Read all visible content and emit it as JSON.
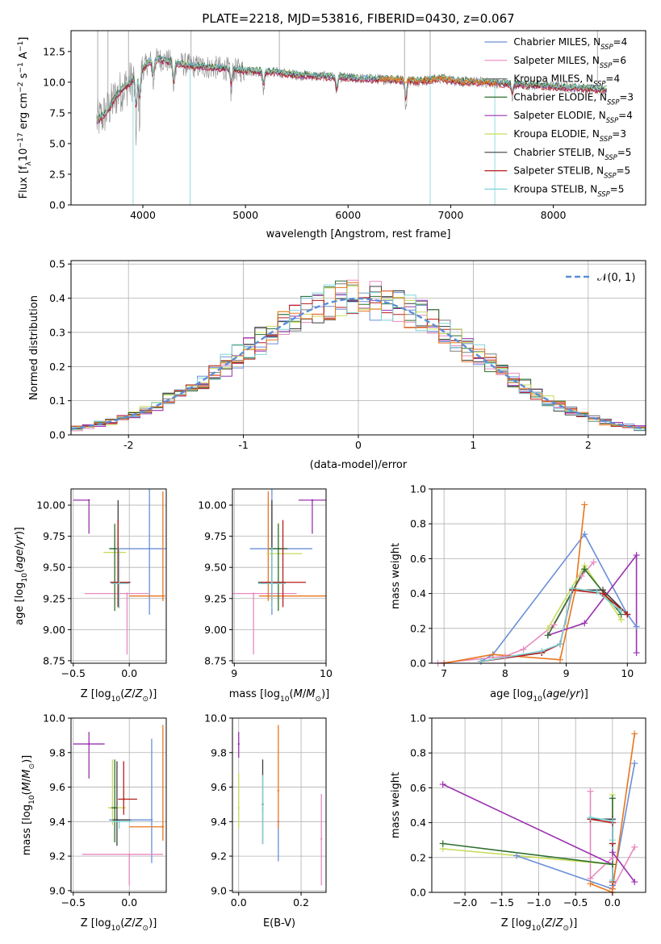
{
  "colors": {
    "chabrier_miles": "#6a8fd8",
    "salpeter_miles": "#e889c0",
    "kroupa_miles": "#7f7f7f",
    "chabrier_elodie": "#2f6f2f",
    "salpeter_elodie": "#9b32b0",
    "kroupa_elodie": "#c7dc5a",
    "chabrier_stelib": "#3d3d3d",
    "salpeter_stelib": "#b71c1c",
    "kroupa_stelib": "#7fd3d8",
    "orange": "#e8761e",
    "normal": "#5b8fd6",
    "grid": "#b0b0b0"
  },
  "chart_data": [
    {
      "type": "line",
      "title": "PLATE=2218, MJD=53816, FIBERID=0430, z=0.067",
      "xlabel": "wavelength [Angstrom, rest frame]",
      "ylabel": "Flux [f_λ10^-17 erg cm^-2 s^-1 A^-1]",
      "xlim": [
        3300,
        8900
      ],
      "ylim": [
        0,
        14.2
      ],
      "xticks": [
        4000,
        5000,
        6000,
        7000,
        8000
      ],
      "yticks": [
        0.0,
        2.5,
        5.0,
        7.5,
        10.0,
        12.5
      ],
      "legend_position": "right",
      "series": [
        {
          "name": "Chabrier MILES, N_SSP=4",
          "color": "#6a8fd8"
        },
        {
          "name": "Salpeter MILES, N_SSP=6",
          "color": "#e889c0"
        },
        {
          "name": "Kroupa MILES, N_SSP=4",
          "color": "#7f7f7f"
        },
        {
          "name": "Chabrier ELODIE, N_SSP=3",
          "color": "#2f6f2f"
        },
        {
          "name": "Salpeter ELODIE, N_SSP=4",
          "color": "#9b32b0"
        },
        {
          "name": "Kroupa ELODIE, N_SSP=3",
          "color": "#c7dc5a"
        },
        {
          "name": "Chabrier STELIB, N_SSP=5",
          "color": "#3d3d3d"
        },
        {
          "name": "Salpeter STELIB, N_SSP=5",
          "color": "#b71c1c"
        },
        {
          "name": "Kroupa STELIB, N_SSP=5",
          "color": "#7fd3d8"
        }
      ],
      "continuum": {
        "x": [
          3550,
          3650,
          3750,
          3850,
          3950,
          4050,
          4150,
          4300,
          4500,
          4700,
          4900,
          5100,
          5300,
          5500,
          5700,
          5900,
          6100,
          6300,
          6500,
          6700,
          6900,
          7100,
          7300,
          7500,
          7700,
          7900,
          8100,
          8300,
          8500
        ],
        "y": [
          6.8,
          7.6,
          9.0,
          9.8,
          10.6,
          11.6,
          11.9,
          11.6,
          11.3,
          11.2,
          11.0,
          10.9,
          10.8,
          10.6,
          10.5,
          10.4,
          10.3,
          10.25,
          10.2,
          10.1,
          10.3,
          10.05,
          10.0,
          9.9,
          9.8,
          9.7,
          9.6,
          9.5,
          9.4
        ]
      }
    },
    {
      "type": "line",
      "xlabel": "(data-model)/error",
      "ylabel": "Normed distribution",
      "xlim": [
        -2.5,
        2.5
      ],
      "ylim": [
        0,
        0.51
      ],
      "xticks": [
        -2,
        -1,
        0,
        1,
        2
      ],
      "yticks": [
        0.0,
        0.1,
        0.2,
        0.3,
        0.4,
        0.5
      ],
      "legend": "𝒩(0, 1)",
      "legend_position": "top-right",
      "bin_width": 0.1
    },
    {
      "type": "scatter",
      "xlabel": "Z [log10(Z/Z⊙)]",
      "ylabel": "age  [log10(age/yr)]",
      "xlim": [
        -0.52,
        0.33
      ],
      "ylim": [
        8.73,
        10.13
      ],
      "xticks": [
        -0.5,
        0.0
      ],
      "yticks": [
        8.75,
        9.0,
        9.25,
        9.5,
        9.75,
        10.0
      ],
      "points": [
        {
          "color": "#9b32b0",
          "x": -0.36,
          "xerr": [
            0.14,
            0
          ],
          "y": 10.04,
          "yerr": [
            0.27,
            0
          ]
        },
        {
          "color": "#6a8fd8",
          "x": 0.18,
          "xerr": [
            0.35,
            0.2
          ],
          "y": 9.65,
          "yerr": [
            0.53,
            0.48
          ]
        },
        {
          "color": "#e889c0",
          "x": -0.02,
          "xerr": [
            0.38,
            0.2
          ],
          "y": 9.29,
          "yerr": [
            0.49,
            0.0
          ]
        },
        {
          "color": "#e8761e",
          "x": 0.3,
          "xerr": [
            0.3,
            0.02
          ],
          "y": 9.27,
          "yerr": [
            0.04,
            0.84
          ]
        },
        {
          "color": "#c7dc5a",
          "x": -0.13,
          "xerr": [
            0.1,
            0.1
          ],
          "y": 9.62,
          "yerr": [
            0.4,
            0.15
          ]
        },
        {
          "color": "#2f6f2f",
          "x": -0.13,
          "xerr": [
            0.05,
            0.02
          ],
          "y": 9.65,
          "yerr": [
            0.5,
            0.2
          ]
        },
        {
          "color": "#3d3d3d",
          "x": -0.1,
          "xerr": [
            0.07,
            0.11
          ],
          "y": 9.38,
          "yerr": [
            0.2,
            0.66
          ]
        },
        {
          "color": "#b71c1c",
          "x": -0.1,
          "xerr": [
            0.07,
            0.11
          ],
          "y": 9.38,
          "yerr": [
            0.2,
            0.5
          ]
        },
        {
          "color": "#7fd3d8",
          "x": -0.09,
          "xerr": [
            0.07,
            0.09
          ],
          "y": 9.37,
          "yerr": [
            0.2,
            0.29
          ]
        }
      ]
    },
    {
      "type": "scatter",
      "xlabel": "mass [log10(M/M⊙)]",
      "xlim": [
        8.98,
        10.0
      ],
      "ylim": [
        8.73,
        10.13
      ],
      "xticks": [
        9,
        10
      ],
      "yticks": [
        8.75,
        9.0,
        9.25,
        9.5,
        9.75,
        10.0
      ],
      "points": [
        {
          "color": "#9b32b0",
          "x": 9.85,
          "xerr": [
            0.15,
            0.15
          ],
          "y": 10.04,
          "yerr": [
            0.27,
            0
          ]
        },
        {
          "color": "#6a8fd8",
          "x": 9.41,
          "xerr": [
            0.24,
            0.44
          ],
          "y": 9.65,
          "yerr": [
            0.53,
            0.48
          ]
        },
        {
          "color": "#e889c0",
          "x": 9.21,
          "xerr": [
            0.23,
            0.47
          ],
          "y": 9.29,
          "yerr": [
            0.49,
            0.0
          ]
        },
        {
          "color": "#e8761e",
          "x": 9.37,
          "xerr": [
            0.1,
            0.63
          ],
          "y": 9.27,
          "yerr": [
            0.04,
            0.84
          ]
        },
        {
          "color": "#c7dc5a",
          "x": 9.48,
          "xerr": [
            0.13,
            0.26
          ],
          "y": 9.61,
          "yerr": [
            0.4,
            0.25
          ]
        },
        {
          "color": "#2f6f2f",
          "x": 9.48,
          "xerr": [
            0.1,
            0.1
          ],
          "y": 9.65,
          "yerr": [
            0.5,
            0.2
          ]
        },
        {
          "color": "#3d3d3d",
          "x": 9.41,
          "xerr": [
            0.15,
            0.15
          ],
          "y": 9.38,
          "yerr": [
            0.2,
            0.66
          ]
        },
        {
          "color": "#b71c1c",
          "x": 9.53,
          "xerr": [
            0.24,
            0.25
          ],
          "y": 9.38,
          "yerr": [
            0.2,
            0.5
          ]
        },
        {
          "color": "#7fd3d8",
          "x": 9.41,
          "xerr": [
            0.15,
            0.15
          ],
          "y": 9.37,
          "yerr": [
            0.2,
            0.29
          ]
        }
      ]
    },
    {
      "type": "line",
      "xlabel": "age  [log10(age/yr)]",
      "ylabel": "mass weight",
      "xlim": [
        6.8,
        10.3
      ],
      "ylim": [
        0,
        1.0
      ],
      "xticks": [
        7,
        8,
        9,
        10
      ],
      "yticks": [
        0.0,
        0.2,
        0.4,
        0.6,
        0.8,
        1.0
      ],
      "series": [
        {
          "color": "#6a8fd8",
          "x": [
            7.6,
            7.8,
            9.3,
            10.0,
            10.15
          ],
          "y": [
            0.01,
            0.05,
            0.74,
            0.28,
            0.21
          ]
        },
        {
          "color": "#e889c0",
          "x": [
            6.9,
            8.0,
            8.3,
            8.8,
            9.25,
            9.45
          ],
          "y": [
            0.0,
            0.04,
            0.08,
            0.22,
            0.5,
            0.58
          ]
        },
        {
          "color": "#e8761e",
          "x": [
            7.0,
            7.8,
            8.9,
            9.15,
            9.3
          ],
          "y": [
            0.0,
            0.05,
            0.02,
            0.42,
            0.91
          ]
        },
        {
          "color": "#9b32b0",
          "x": [
            8.7,
            9.3,
            10.15,
            10.15
          ],
          "y": [
            0.16,
            0.23,
            0.62,
            0.06
          ]
        },
        {
          "color": "#c7dc5a",
          "x": [
            8.7,
            9.3,
            9.9
          ],
          "y": [
            0.2,
            0.56,
            0.25
          ]
        },
        {
          "color": "#2f6f2f",
          "x": [
            8.7,
            9.3,
            9.9
          ],
          "y": [
            0.16,
            0.54,
            0.28
          ]
        },
        {
          "color": "#3d3d3d",
          "x": [
            7.6,
            8.6,
            8.9,
            9.1,
            9.6,
            10.0
          ],
          "y": [
            0.01,
            0.06,
            0.11,
            0.42,
            0.42,
            0.28
          ]
        },
        {
          "color": "#b71c1c",
          "x": [
            7.6,
            8.6,
            8.9,
            9.1,
            9.6,
            10.0
          ],
          "y": [
            0.01,
            0.06,
            0.11,
            0.42,
            0.4,
            0.28
          ]
        },
        {
          "color": "#7fd3d8",
          "x": [
            7.6,
            8.6,
            8.9,
            9.1,
            9.5,
            9.9
          ],
          "y": [
            0.01,
            0.07,
            0.11,
            0.43,
            0.41,
            0.3
          ]
        }
      ]
    },
    {
      "type": "scatter",
      "xlabel": "Z [log10(Z/Z⊙)]",
      "ylabel": "mass [log10(M/M⊙)]",
      "xlim": [
        -0.52,
        0.33
      ],
      "ylim": [
        8.99,
        10.0
      ],
      "xticks": [
        -0.5,
        0.0
      ],
      "yticks": [
        9.0,
        9.2,
        9.4,
        9.6,
        9.8,
        10.0
      ],
      "points": [
        {
          "color": "#9b32b0",
          "x": -0.36,
          "xerr": [
            0.14,
            0.14
          ],
          "y": 9.85,
          "yerr": [
            0.2,
            0.07
          ]
        },
        {
          "color": "#6a8fd8",
          "x": 0.2,
          "xerr": [
            0.38,
            0.0
          ],
          "y": 9.41,
          "yerr": [
            0.25,
            0.47
          ]
        },
        {
          "color": "#e889c0",
          "x": 0.0,
          "xerr": [
            0.42,
            0.3
          ],
          "y": 9.21,
          "yerr": [
            0.18,
            0.0
          ]
        },
        {
          "color": "#e8761e",
          "x": 0.3,
          "xerr": [
            0.3,
            0.0
          ],
          "y": 9.37,
          "yerr": [
            0.08,
            0.59
          ]
        },
        {
          "color": "#c7dc5a",
          "x": -0.15,
          "xerr": [
            0.04,
            0.12
          ],
          "y": 9.48,
          "yerr": [
            0.1,
            0.28
          ]
        },
        {
          "color": "#2f6f2f",
          "x": -0.13,
          "xerr": [
            0.03,
            0.02
          ],
          "y": 9.48,
          "yerr": [
            0.2,
            0.28
          ]
        },
        {
          "color": "#3d3d3d",
          "x": -0.11,
          "xerr": [
            0.04,
            0.12
          ],
          "y": 9.41,
          "yerr": [
            0.15,
            0.34
          ]
        },
        {
          "color": "#b71c1c",
          "x": -0.05,
          "xerr": [
            0.05,
            0.12
          ],
          "y": 9.53,
          "yerr": [
            0.09,
            0.22
          ]
        },
        {
          "color": "#7fd3d8",
          "x": -0.09,
          "xerr": [
            0.07,
            0.12
          ],
          "y": 9.4,
          "yerr": [
            0.04,
            0.0
          ]
        }
      ]
    },
    {
      "type": "scatter",
      "xlabel": "E(B-V)",
      "xlim": [
        -0.02,
        0.28
      ],
      "ylim": [
        8.99,
        10.0
      ],
      "xticks": [
        0.0,
        0.2
      ],
      "yticks": [
        9.0,
        9.2,
        9.4,
        9.6,
        9.8,
        10.0
      ],
      "points": [
        {
          "color": "#9b32b0",
          "x": 0.0,
          "y": 9.85,
          "yerr": [
            0.08,
            0.07
          ]
        },
        {
          "color": "#c7dc5a",
          "x": 0.0,
          "y": 9.48,
          "yerr": [
            0.12,
            0.2
          ]
        },
        {
          "color": "#3d3d3d",
          "x": 0.077,
          "y": 9.5,
          "yerr": [
            0.23,
            0.26
          ]
        },
        {
          "color": "#7fd3d8",
          "x": 0.077,
          "y": 9.47,
          "yerr": [
            0.2,
            0.2
          ]
        },
        {
          "color": "#6a8fd8",
          "x": 0.127,
          "y": 9.4,
          "yerr": [
            0.23,
            0.0
          ]
        },
        {
          "color": "#e8761e",
          "x": 0.127,
          "y": 9.58,
          "yerr": [
            0.22,
            0.38
          ]
        },
        {
          "color": "#e889c0",
          "x": 0.265,
          "y": 9.3,
          "yerr": [
            0.27,
            0.26
          ]
        }
      ]
    },
    {
      "type": "line",
      "xlabel": "Z [log10(Z/Z⊙)]",
      "ylabel": "mass weight",
      "xlim": [
        -2.45,
        0.45
      ],
      "ylim": [
        0,
        1.0
      ],
      "xticks": [
        -2.0,
        -1.5,
        -1.0,
        -0.5,
        0.0
      ],
      "yticks": [
        0.0,
        0.2,
        0.4,
        0.6,
        0.8,
        1.0
      ],
      "series": [
        {
          "color": "#6a8fd8",
          "x": [
            -1.3,
            0.0,
            0.0,
            0.3
          ],
          "y": [
            0.21,
            0.02,
            0.04,
            0.74
          ]
        },
        {
          "color": "#e889c0",
          "x": [
            -0.3,
            -0.3,
            0.0,
            0.0,
            0.3
          ],
          "y": [
            0.58,
            0.08,
            0.2,
            0.02,
            0.26
          ]
        },
        {
          "color": "#e8761e",
          "x": [
            -0.3,
            0.0,
            0.0,
            0.3
          ],
          "y": [
            0.05,
            0.0,
            0.02,
            0.91
          ]
        },
        {
          "color": "#9b32b0",
          "x": [
            -2.3,
            0.0,
            0.0,
            0.3
          ],
          "y": [
            0.62,
            0.16,
            0.23,
            0.06
          ]
        },
        {
          "color": "#c7dc5a",
          "x": [
            -2.3,
            0.0,
            0.0
          ],
          "y": [
            0.25,
            0.16,
            0.56
          ]
        },
        {
          "color": "#2f6f2f",
          "x": [
            -2.3,
            0.0,
            0.0
          ],
          "y": [
            0.28,
            0.16,
            0.54
          ]
        },
        {
          "color": "#3d3d3d",
          "x": [
            -0.3,
            0.0,
            0.0,
            0.0
          ],
          "y": [
            0.42,
            0.42,
            0.06,
            0.28
          ]
        },
        {
          "color": "#b71c1c",
          "x": [
            -0.3,
            0.0,
            0.0,
            0.0
          ],
          "y": [
            0.42,
            0.4,
            0.06,
            0.28
          ]
        },
        {
          "color": "#7fd3d8",
          "x": [
            -0.3,
            0.0,
            0.0,
            0.0
          ],
          "y": [
            0.43,
            0.41,
            0.07,
            0.3
          ]
        }
      ]
    }
  ]
}
